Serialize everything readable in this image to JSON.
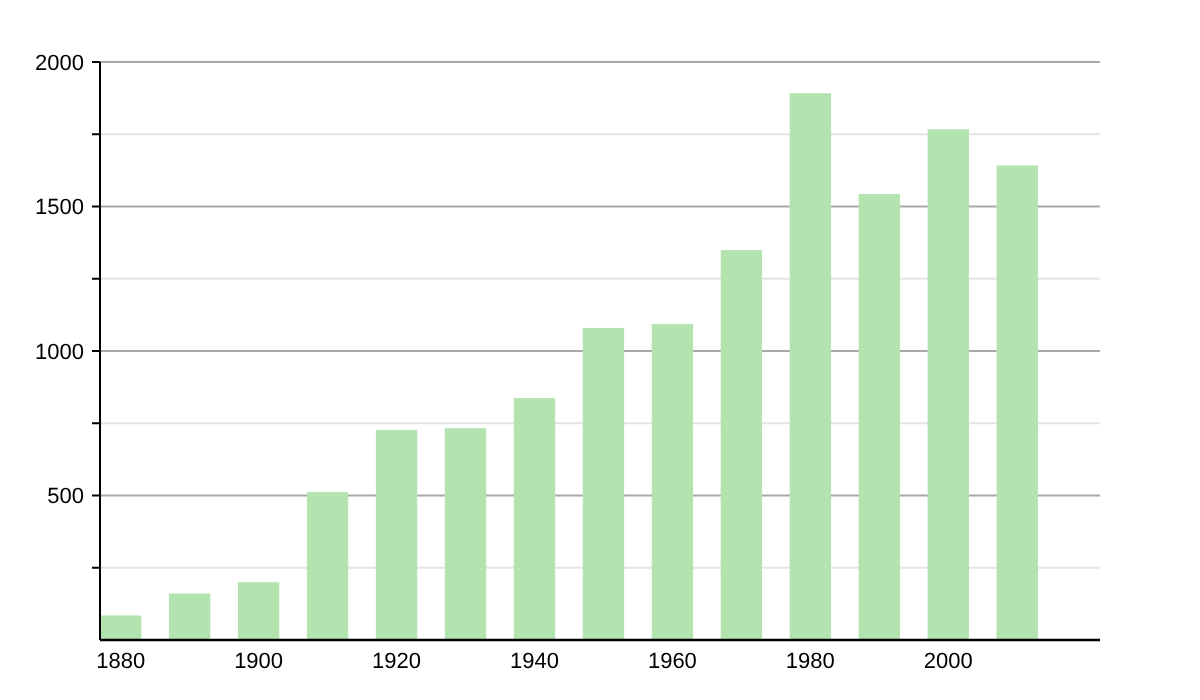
{
  "chart_data": {
    "type": "bar",
    "x": [
      1880,
      1890,
      1900,
      1910,
      1920,
      1930,
      1940,
      1950,
      1960,
      1970,
      1980,
      1990,
      2000,
      2010
    ],
    "values": [
      85,
      161,
      200,
      512,
      727,
      733,
      837,
      1080,
      1093,
      1349,
      1892,
      1543,
      1767,
      1642
    ],
    "color": "#b3e4b0",
    "xlim": [
      1877,
      2022
    ],
    "xticks": [
      1880,
      1900,
      1920,
      1940,
      1960,
      1980,
      2000
    ],
    "ylim": [
      0,
      2000
    ],
    "yticks": [
      {
        "value": 250,
        "label": null
      },
      500,
      {
        "value": 750,
        "label": null
      },
      1000,
      {
        "value": 1250,
        "label": null
      },
      1500,
      {
        "value": 1750,
        "label": null
      },
      2000
    ],
    "grid": "y"
  }
}
